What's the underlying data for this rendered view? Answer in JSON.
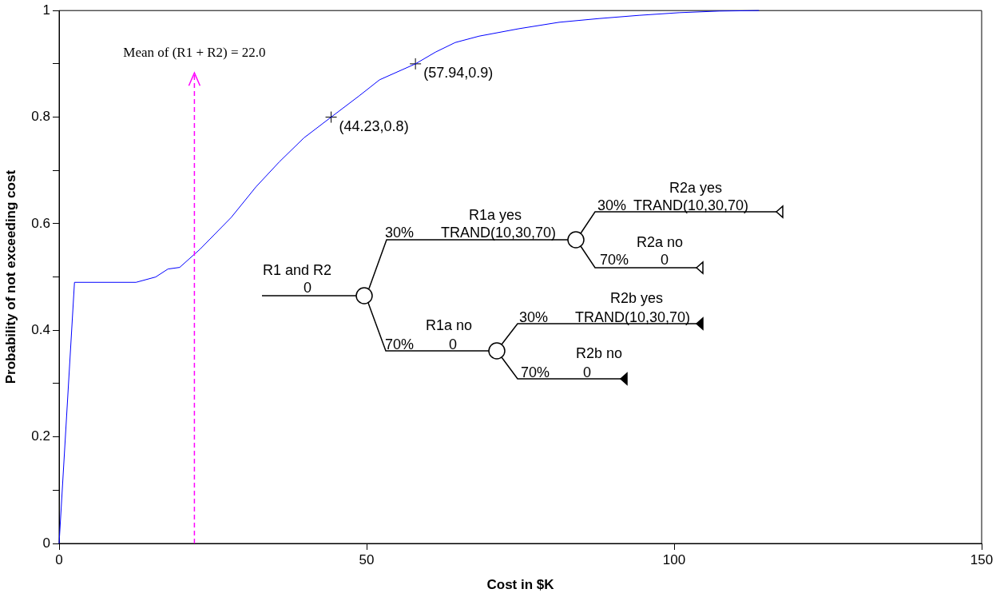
{
  "chart_data": {
    "type": "line",
    "xlabel": "Cost in $K",
    "ylabel": "Probability of not exceeding cost",
    "xlim": [
      0,
      150
    ],
    "xticks": [
      0,
      50,
      100,
      150
    ],
    "ylim": [
      0,
      1
    ],
    "yticks": [
      0,
      {
        "value": 0.1,
        "label": null
      },
      0.2,
      {
        "value": 0.3,
        "label": null
      },
      0.4,
      {
        "value": 0.5,
        "label": null
      },
      0.6,
      {
        "value": 0.7,
        "label": null
      },
      0.8,
      {
        "value": 0.9,
        "label": null
      },
      1
    ],
    "grid": false,
    "legend": false,
    "series": [
      {
        "type": "line",
        "color": "#0000ff",
        "marker": "none",
        "x": [
          0,
          2.5,
          12.5,
          15.7,
          17.7,
          19.6,
          22.9,
          28,
          32,
          35.8,
          39.8,
          44.23,
          48.8,
          52.1,
          57.94,
          61.2,
          64.4,
          68.3,
          74.8,
          81.3,
          87.8,
          94.3,
          100.8,
          107.3,
          113.8
        ],
        "values": [
          0,
          0.49,
          0.49,
          0.5,
          0.515,
          0.518,
          0.552,
          0.612,
          0.669,
          0.716,
          0.761,
          0.8,
          0.84,
          0.87,
          0.9,
          0.922,
          0.94,
          0.952,
          0.966,
          0.978,
          0.985,
          0.991,
          0.996,
          0.999,
          1
        ]
      },
      {
        "type": "scatter",
        "color": "#000000",
        "marker": "cross",
        "x": [
          44.23,
          57.94
        ],
        "values": [
          0.8,
          0.9
        ],
        "value_labels": [
          "(44.23,0.8)",
          "(57.94,0.9)"
        ]
      }
    ],
    "ref_lines": [
      {
        "axis": "x",
        "value": 22.0,
        "label": "Mean of (R1 + R2) = 22.0",
        "color": "#ff00ff",
        "line_style": "dashed"
      }
    ],
    "annotations": [
      "R1 and R2",
      "0",
      "R1a yes",
      "30%",
      "TRAND(10,30,70)",
      "R1a no",
      "70%",
      "0",
      "R2a yes",
      "30%",
      "TRAND(10,30,70)",
      "R2a no",
      "70%",
      "0",
      "R2b yes",
      "30%",
      "TRAND(10,30,70)",
      "R2b no",
      "70%",
      "0"
    ]
  }
}
